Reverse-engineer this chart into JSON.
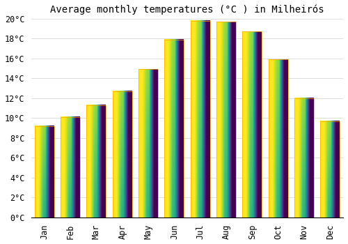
{
  "title": "Average monthly temperatures (°C ) in Milheirós",
  "months": [
    "Jan",
    "Feb",
    "Mar",
    "Apr",
    "May",
    "Jun",
    "Jul",
    "Aug",
    "Sep",
    "Oct",
    "Nov",
    "Dec"
  ],
  "values": [
    9.2,
    10.1,
    11.3,
    12.7,
    14.9,
    17.9,
    19.8,
    19.7,
    18.7,
    15.9,
    12.0,
    9.7
  ],
  "bar_color_top": "#FFD700",
  "bar_color_bottom": "#FFA500",
  "background_color": "#FFFFFF",
  "grid_color": "#DDDDDD",
  "ylim": [
    0,
    20
  ],
  "ytick_step": 2,
  "title_fontsize": 10,
  "tick_fontsize": 8.5,
  "font_family": "monospace"
}
